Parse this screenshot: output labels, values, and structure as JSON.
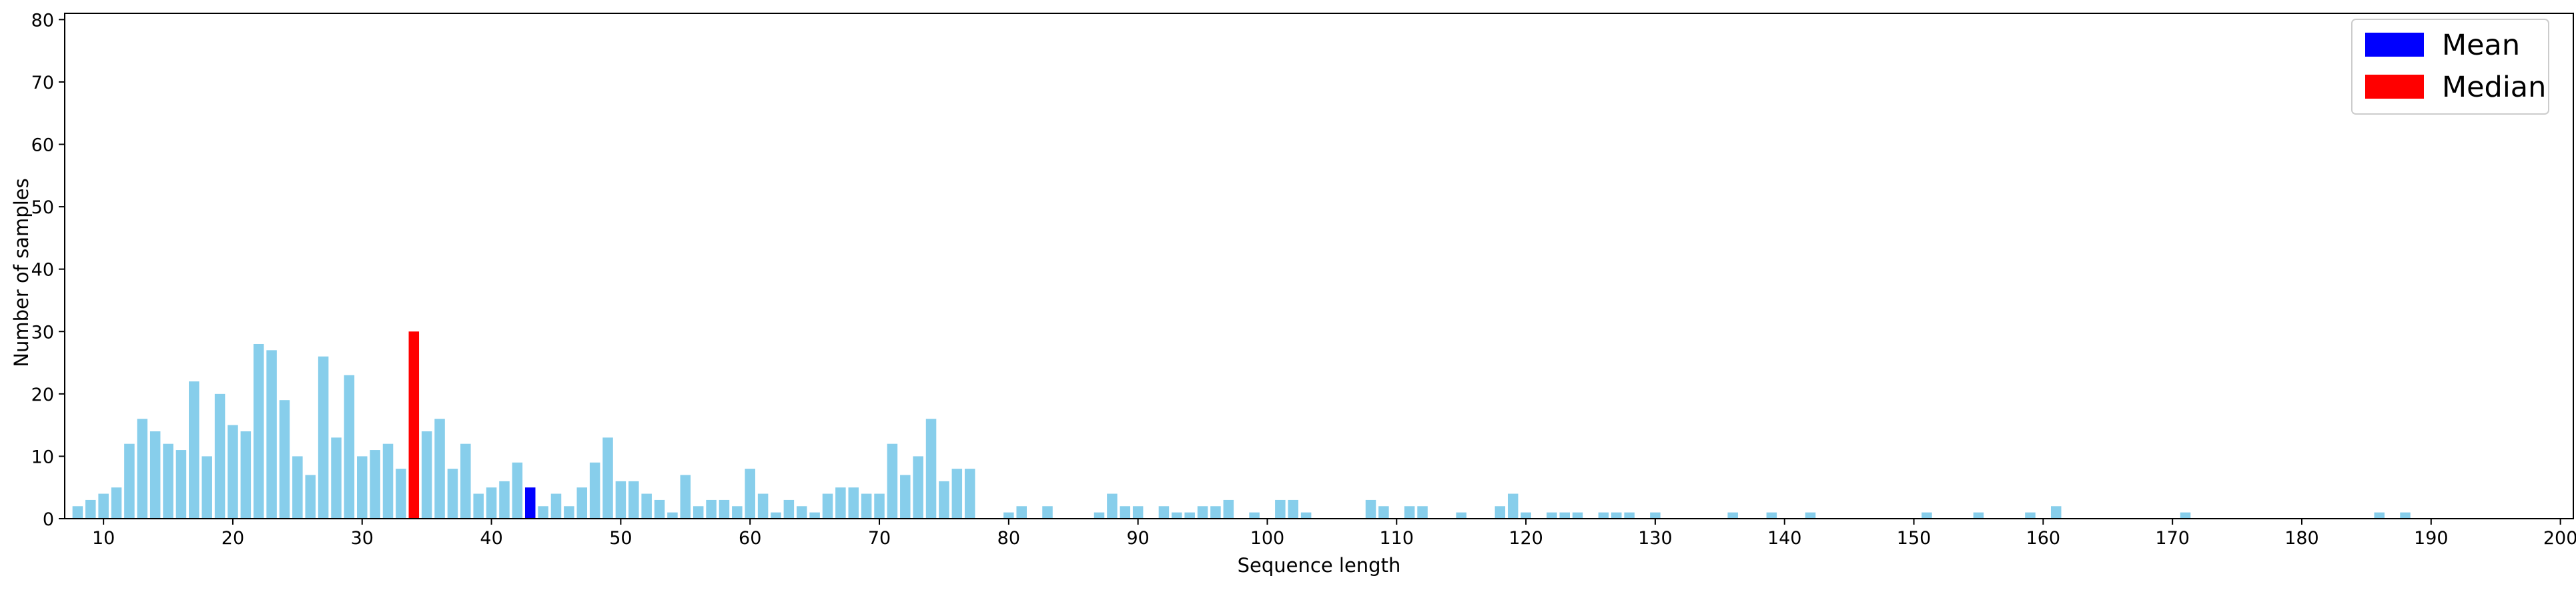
{
  "chart_data": {
    "type": "bar",
    "xlabel": "Sequence length",
    "ylabel": "Number of samples",
    "xlim": [
      7,
      201
    ],
    "ylim": [
      0,
      81
    ],
    "x_ticks": [
      10,
      20,
      30,
      40,
      50,
      60,
      70,
      80,
      90,
      100,
      110,
      120,
      130,
      140,
      150,
      160,
      170,
      180,
      190,
      200
    ],
    "y_ticks": [
      0,
      10,
      20,
      30,
      40,
      50,
      60,
      70,
      80
    ],
    "grid": false,
    "legend": {
      "position": "top-right",
      "entries": [
        {
          "label": "Mean",
          "color": "#0000ff"
        },
        {
          "label": "Median",
          "color": "#ff0000"
        }
      ]
    },
    "colors": {
      "default": "#87ceeb",
      "mean": "#0000ff",
      "median": "#ff0000"
    },
    "mean_x": 43,
    "median_x": 34,
    "x": [
      8,
      9,
      10,
      11,
      12,
      13,
      14,
      15,
      16,
      17,
      18,
      19,
      20,
      21,
      22,
      23,
      24,
      25,
      26,
      27,
      28,
      29,
      30,
      31,
      32,
      33,
      34,
      35,
      36,
      37,
      38,
      39,
      40,
      41,
      42,
      43,
      44,
      45,
      46,
      47,
      48,
      49,
      50,
      51,
      52,
      53,
      54,
      55,
      56,
      57,
      58,
      59,
      60,
      61,
      62,
      63,
      64,
      65,
      66,
      67,
      68,
      69,
      70,
      71,
      72,
      73,
      74,
      75,
      76,
      77,
      80,
      81,
      83,
      87,
      88,
      89,
      90,
      92,
      93,
      94,
      95,
      96,
      97,
      99,
      101,
      102,
      103,
      108,
      109,
      111,
      112,
      115,
      118,
      119,
      120,
      122,
      123,
      124,
      126,
      127,
      128,
      130,
      136,
      139,
      142,
      151,
      155,
      159,
      161,
      171,
      186,
      188
    ],
    "values": [
      2,
      3,
      4,
      5,
      12,
      16,
      14,
      12,
      11,
      22,
      10,
      20,
      15,
      14,
      28,
      27,
      19,
      10,
      7,
      26,
      13,
      23,
      10,
      11,
      12,
      8,
      30,
      14,
      16,
      8,
      12,
      4,
      5,
      6,
      9,
      5,
      2,
      4,
      2,
      5,
      9,
      13,
      6,
      6,
      4,
      3,
      1,
      7,
      2,
      3,
      3,
      2,
      8,
      4,
      1,
      3,
      2,
      1,
      4,
      5,
      5,
      4,
      4,
      12,
      7,
      10,
      16,
      6,
      8,
      8,
      1,
      2,
      2,
      1,
      4,
      2,
      2,
      2,
      1,
      1,
      2,
      2,
      3,
      1,
      3,
      3,
      1,
      3,
      2,
      2,
      2,
      1,
      2,
      4,
      1,
      1,
      1,
      1,
      1,
      1,
      1,
      1,
      1,
      1,
      1,
      1,
      1,
      1,
      2,
      1,
      1,
      1
    ]
  }
}
